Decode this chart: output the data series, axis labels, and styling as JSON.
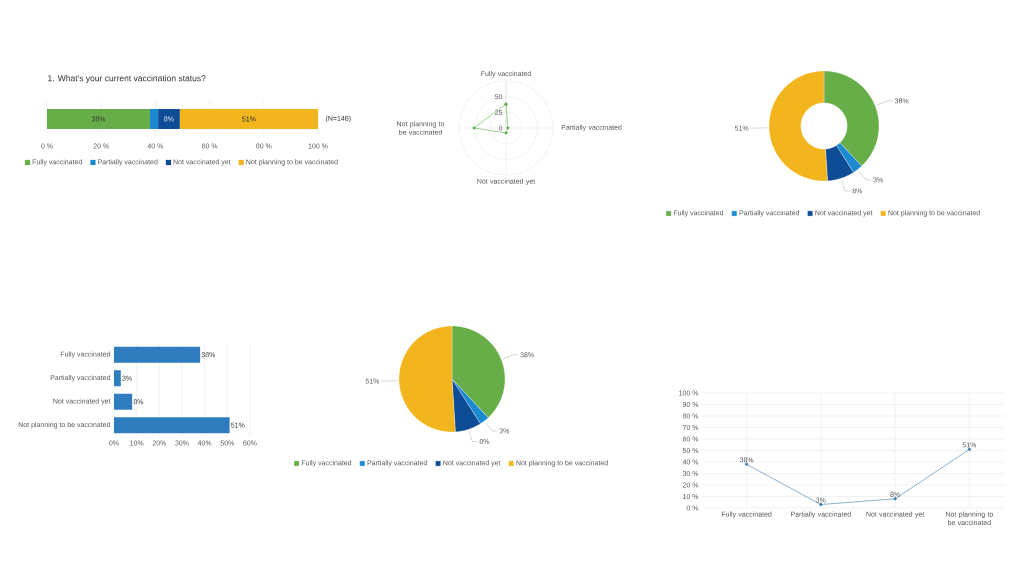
{
  "chart_data": [
    {
      "type": "bar",
      "orientation": "horizontal",
      "stacked": true,
      "title": "1. What's your current vaccination status?",
      "categories": [
        null
      ],
      "series": [
        {
          "name": "Fully vaccinated",
          "color": "#67ae48",
          "values": [
            38
          ],
          "value_labels": [
            "38%"
          ]
        },
        {
          "name": "Partially vaccinated",
          "color": "#1b8ad0",
          "values": [
            3
          ],
          "value_labels": [
            null
          ]
        },
        {
          "name": "Not vaccinated yet",
          "color": "#0f4c96",
          "values": [
            8
          ],
          "value_labels": [
            "8%"
          ]
        },
        {
          "name": "Not planning to be vaccinated",
          "color": "#f2b51d",
          "values": [
            51
          ],
          "value_labels": [
            "51%"
          ]
        }
      ],
      "xlim": [
        0,
        100
      ],
      "xticks": [
        {
          "value": 0,
          "label": "0 %"
        },
        {
          "value": 20,
          "label": "20 %"
        },
        {
          "value": 40,
          "label": "40 %"
        },
        {
          "value": 60,
          "label": "60 %"
        },
        {
          "value": 80,
          "label": "80 %"
        },
        {
          "value": 100,
          "label": "100 %"
        }
      ],
      "grid": "x",
      "legend": "bottom",
      "annotations": [
        "(N=146)"
      ]
    },
    {
      "type": "radar",
      "categories": [
        "Fully vaccinated",
        "Partially vaccinated",
        "Not vaccinated yet",
        "Not planning to be vaccinated"
      ],
      "series": [
        {
          "color": "#5bb04c",
          "values": [
            38,
            3,
            8,
            51
          ]
        }
      ],
      "ylim": [
        0,
        75
      ],
      "yticks": [
        0,
        25,
        50
      ],
      "grid": true,
      "marker": "circle"
    },
    {
      "type": "donut",
      "categories": [
        "Fully vaccinated",
        "Partially vaccinated",
        "Not vaccinated yet",
        "Not planning to be vaccinated"
      ],
      "values": [
        38,
        3,
        8,
        51
      ],
      "colors": [
        "#67ae48",
        "#1b8ad0",
        "#0f4c96",
        "#f2b51d"
      ],
      "value_labels": [
        "38%",
        "3%",
        "8%",
        "51%"
      ],
      "legend": "bottom"
    },
    {
      "type": "bar",
      "orientation": "horizontal",
      "categories": [
        "Fully vaccinated",
        "Partially vaccinated",
        "Not vaccinated yet",
        "Not planning to be vaccinated"
      ],
      "values": [
        38,
        3,
        8,
        51
      ],
      "color": "#2f7dbf",
      "value_labels": [
        "38%",
        "3%",
        "8%",
        "51%"
      ],
      "xlim": [
        0,
        60
      ],
      "xticks": [
        {
          "value": 0,
          "label": "0%"
        },
        {
          "value": 10,
          "label": "10%"
        },
        {
          "value": 20,
          "label": "20%"
        },
        {
          "value": 30,
          "label": "30%"
        },
        {
          "value": 40,
          "label": "40%"
        },
        {
          "value": 50,
          "label": "50%"
        },
        {
          "value": 60,
          "label": "60%"
        }
      ],
      "grid": "x"
    },
    {
      "type": "pie",
      "categories": [
        "Fully vaccinated",
        "Partially vaccinated",
        "Not vaccinated yet",
        "Not planning to be vaccinated"
      ],
      "values": [
        38,
        3,
        8,
        51
      ],
      "colors": [
        "#67ae48",
        "#1b8ad0",
        "#0f4c96",
        "#f2b51d"
      ],
      "value_labels": [
        "38%",
        "3%",
        "8%",
        "51%"
      ],
      "legend": "bottom"
    },
    {
      "type": "line",
      "categories": [
        "Fully vaccinated",
        "Partially vaccinated",
        "Not vaccinated yet",
        "Not planning to be vaccinated"
      ],
      "values": [
        38,
        3,
        8,
        51
      ],
      "color": "#3c80ad",
      "marker": "circle",
      "value_labels": [
        "38%",
        "3%",
        "8%",
        "51%"
      ],
      "ylim": [
        0,
        100
      ],
      "yticks": [
        {
          "value": 0,
          "label": "0 %"
        },
        {
          "value": 10,
          "label": "10 %"
        },
        {
          "value": 20,
          "label": "20 %"
        },
        {
          "value": 30,
          "label": "30 %"
        },
        {
          "value": 40,
          "label": "40 %"
        },
        {
          "value": 50,
          "label": "50 %"
        },
        {
          "value": 60,
          "label": "60 %"
        },
        {
          "value": 70,
          "label": "70 %"
        },
        {
          "value": 80,
          "label": "80 %"
        },
        {
          "value": 90,
          "label": "90 %"
        },
        {
          "value": 100,
          "label": "100 %"
        }
      ],
      "grid": true
    }
  ]
}
